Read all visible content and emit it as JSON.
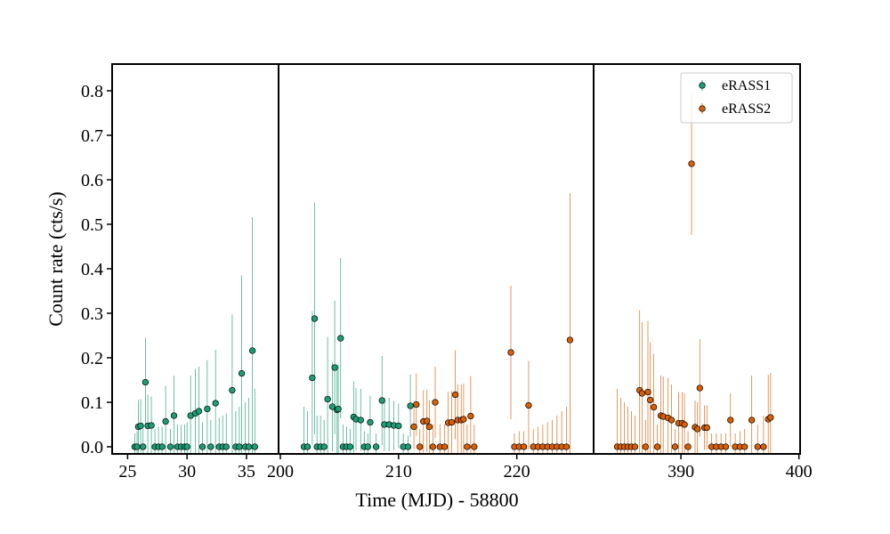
{
  "chart_data": {
    "type": "errorbar",
    "xlabel": "Time (MJD) - 58800",
    "ylabel": "Count rate (cts/s)",
    "ylim": [
      -0.016,
      0.86
    ],
    "yticks": [
      {
        "value": 0,
        "label": "0.0"
      },
      0.1,
      0.2,
      0.3,
      0.4,
      0.5,
      0.6,
      0.7,
      0.8
    ],
    "legend": "upper right",
    "panels": [
      {
        "xlim": [
          23.7,
          37.7
        ],
        "xticks": [
          25,
          30,
          35
        ]
      },
      {
        "xlim": [
          199.85,
          226.5
        ],
        "xticks": [
          200,
          210,
          220
        ]
      },
      {
        "xlim": [
          382.6,
          400.1
        ],
        "xticks": [
          390,
          400
        ]
      }
    ],
    "series": [
      {
        "name": "eRASS1",
        "color": "#1b9e77",
        "x": [
          25.6,
          25.8,
          25.9,
          26.1,
          26.3,
          26.5,
          26.7,
          27.0,
          27.3,
          27.6,
          27.9,
          28.2,
          28.6,
          28.9,
          29.2,
          29.5,
          29.8,
          30.0,
          30.3,
          30.7,
          31.0,
          31.3,
          31.7,
          32.0,
          32.4,
          32.7,
          33.0,
          33.3,
          33.8,
          34.1,
          34.4,
          34.6,
          34.9,
          35.2,
          35.5,
          35.7,
          202.0,
          202.3,
          202.7,
          202.9,
          203.1,
          203.4,
          203.7,
          204.0,
          204.4,
          204.6,
          204.8,
          204.9,
          205.1,
          205.3,
          205.6,
          205.9,
          206.2,
          206.4,
          206.8,
          207.1,
          207.4,
          207.6,
          208.1,
          208.6,
          208.8,
          209.2,
          209.6,
          210.0,
          210.4,
          210.8,
          211.0
        ],
        "values": [
          0,
          0,
          0.045,
          0.047,
          0,
          0.145,
          0.047,
          0.048,
          0,
          0,
          0,
          0.057,
          0,
          0.07,
          0,
          0,
          0,
          0,
          0.07,
          0.075,
          0.08,
          0,
          0.085,
          0,
          0.098,
          0,
          0,
          0,
          0.127,
          0,
          0,
          0.165,
          0,
          0,
          0.216,
          0,
          0,
          0,
          0.155,
          0.288,
          0,
          0,
          0,
          0.107,
          0.09,
          0.178,
          0.083,
          0.085,
          0.244,
          0,
          0,
          0,
          0.067,
          0.062,
          0.06,
          0,
          0,
          0.055,
          0,
          0.104,
          0.05,
          0.05,
          0.048,
          0.047,
          0,
          0,
          0.092
        ],
        "errors": [
          0.03,
          0.035,
          0.06,
          0.06,
          0.04,
          0.1,
          0.07,
          0.065,
          0.04,
          0.045,
          0.045,
          0.08,
          0.04,
          0.09,
          0.05,
          0.05,
          0.05,
          0.055,
          0.09,
          0.1,
          0.1,
          0.055,
          0.11,
          0.06,
          0.12,
          0.065,
          0.07,
          0.075,
          0.17,
          0.08,
          0.09,
          0.22,
          0.1,
          0.11,
          0.3,
          0.13,
          0.09,
          0.08,
          0.15,
          0.26,
          0.07,
          0.07,
          0.06,
          0.14,
          0.1,
          0.15,
          0.1,
          0.1,
          0.18,
          0.05,
          0.045,
          0.04,
          0.08,
          0.07,
          0.07,
          0.035,
          0.03,
          0.06,
          0.03,
          0.1,
          0.06,
          0.06,
          0.055,
          0.05,
          0.03,
          0.025,
          0.07
        ]
      },
      {
        "name": "eRASS2",
        "color": "#d95f02",
        "x": [
          211.3,
          211.5,
          211.8,
          212.1,
          212.4,
          212.6,
          212.9,
          213.1,
          213.5,
          213.9,
          214.2,
          214.5,
          214.8,
          215.0,
          215.3,
          215.5,
          215.8,
          216.1,
          216.4,
          219.5,
          219.8,
          220.2,
          220.6,
          221.0,
          221.4,
          221.8,
          222.2,
          222.6,
          223.0,
          223.4,
          223.8,
          224.2,
          224.5,
          384.6,
          384.9,
          385.2,
          385.5,
          385.8,
          386.1,
          386.5,
          386.7,
          387.0,
          387.2,
          387.4,
          387.7,
          388.0,
          388.3,
          388.5,
          388.9,
          389.2,
          389.5,
          389.8,
          390.1,
          390.3,
          390.6,
          390.9,
          391.2,
          391.4,
          391.6,
          392.0,
          392.2,
          392.6,
          393.0,
          393.4,
          393.8,
          394.2,
          394.6,
          395.0,
          395.4,
          396.0,
          396.5,
          397.0,
          397.4,
          397.6
        ],
        "values": [
          0.045,
          0.095,
          0,
          0.057,
          0.058,
          0.045,
          0,
          0.1,
          0,
          0,
          0.054,
          0.055,
          0.117,
          0.06,
          0.06,
          0.062,
          0,
          0.069,
          0,
          0.212,
          0,
          0,
          0,
          0.093,
          0,
          0,
          0,
          0,
          0,
          0,
          0,
          0,
          0.24,
          0,
          0,
          0,
          0,
          0,
          0,
          0.127,
          0.12,
          0,
          0.123,
          0.105,
          0.089,
          0,
          0.07,
          0.068,
          0.065,
          0.06,
          0,
          0.053,
          0.053,
          0.05,
          0,
          0.636,
          0.044,
          0.04,
          0.132,
          0.043,
          0.043,
          0,
          0,
          0,
          0,
          0.06,
          0,
          0,
          0,
          0.06,
          0,
          0,
          0.062,
          0.066
        ],
        "errors": [
          0.05,
          0.07,
          0.04,
          0.07,
          0.07,
          0.06,
          0.05,
          0.08,
          0.05,
          0.05,
          0.07,
          0.07,
          0.1,
          0.08,
          0.08,
          0.08,
          0.05,
          0.09,
          0.05,
          0.15,
          0.03,
          0.035,
          0.035,
          0.1,
          0.04,
          0.045,
          0.05,
          0.055,
          0.06,
          0.07,
          0.08,
          0.09,
          0.33,
          0.13,
          0.11,
          0.1,
          0.09,
          0.08,
          0.07,
          0.18,
          0.16,
          0.06,
          0.16,
          0.13,
          0.12,
          0.05,
          0.09,
          0.09,
          0.09,
          0.08,
          0.04,
          0.07,
          0.07,
          0.07,
          0.035,
          0.16,
          0.06,
          0.06,
          0.11,
          0.05,
          0.05,
          0.03,
          0.03,
          0.03,
          0.03,
          0.06,
          0.03,
          0.035,
          0.04,
          0.1,
          0.05,
          0.07,
          0.1,
          0.1
        ]
      }
    ]
  }
}
